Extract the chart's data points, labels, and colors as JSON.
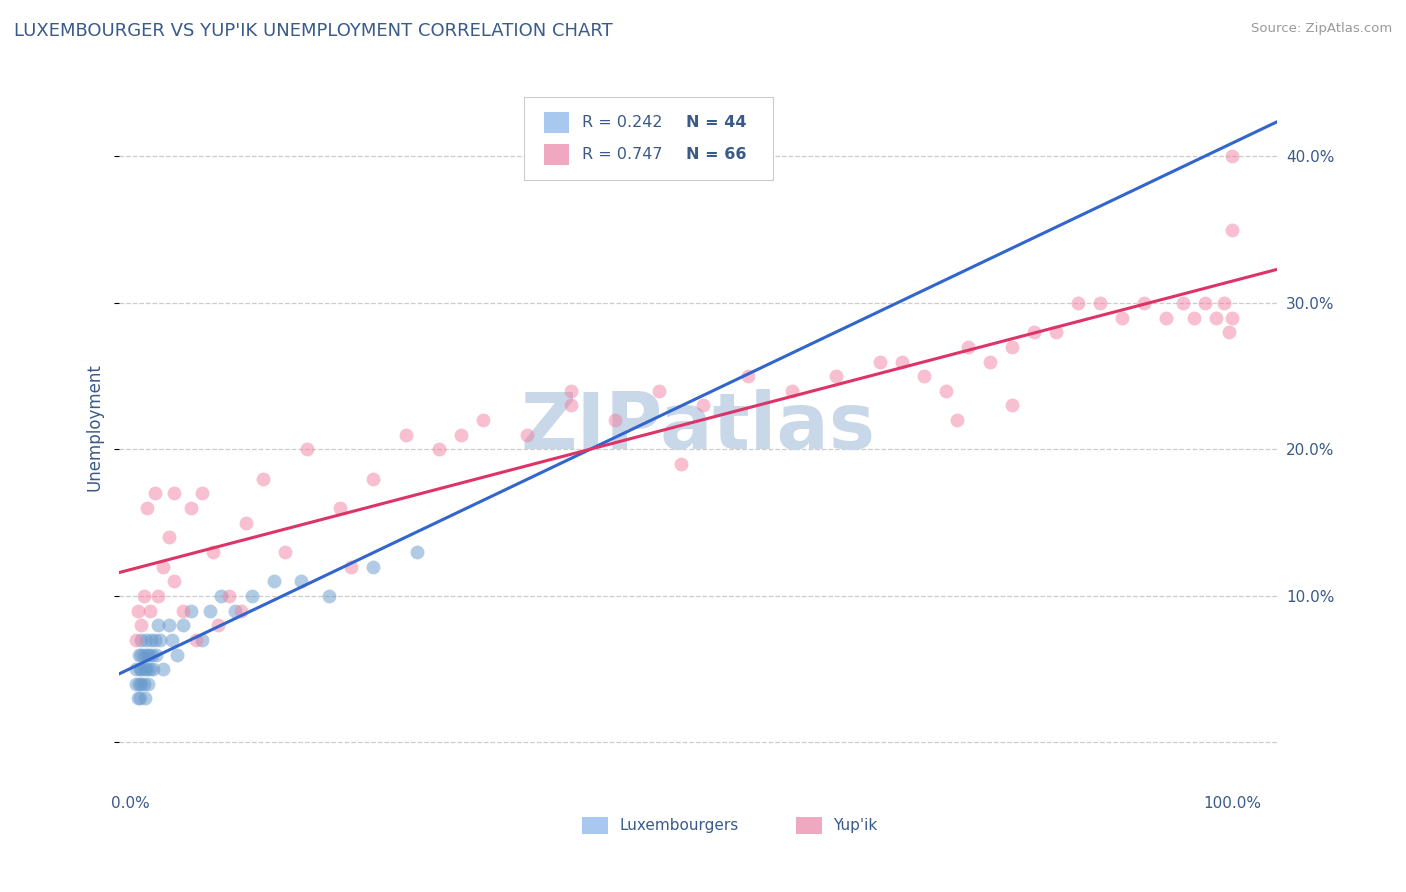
{
  "title": "LUXEMBOURGER VS YUP'IK UNEMPLOYMENT CORRELATION CHART",
  "source": "Source: ZipAtlas.com",
  "ylabel": "Unemployment",
  "yticks": [
    0.0,
    0.1,
    0.2,
    0.3,
    0.4
  ],
  "ytick_labels": [
    "",
    "10.0%",
    "20.0%",
    "30.0%",
    "40.0%"
  ],
  "xlim": [
    -0.01,
    1.04
  ],
  "ylim": [
    -0.03,
    0.46
  ],
  "title_color": "#3a5a8a",
  "title_fontsize": 13,
  "watermark": "ZIPatlas",
  "watermark_color": "#c8d8e8",
  "watermark_fontsize": 56,
  "legend_R1": "R = 0.242",
  "legend_N1": "N = 44",
  "legend_R2": "R = 0.747",
  "legend_N2": "N = 66",
  "legend_color1": "#a8c8f0",
  "legend_color2": "#f0a8c0",
  "scatter_color_blue": "#6699cc",
  "scatter_color_pink": "#f080a0",
  "line_color_blue": "#3366cc",
  "line_color_pink": "#dd3366",
  "dot_size": 100,
  "dot_alpha": 0.5,
  "blue_x": [
    0.005,
    0.005,
    0.007,
    0.008,
    0.008,
    0.009,
    0.009,
    0.01,
    0.01,
    0.01,
    0.01,
    0.012,
    0.012,
    0.013,
    0.013,
    0.014,
    0.015,
    0.015,
    0.016,
    0.017,
    0.018,
    0.019,
    0.02,
    0.021,
    0.022,
    0.023,
    0.025,
    0.027,
    0.03,
    0.035,
    0.038,
    0.042,
    0.048,
    0.055,
    0.065,
    0.072,
    0.082,
    0.095,
    0.11,
    0.13,
    0.155,
    0.18,
    0.22,
    0.26
  ],
  "blue_y": [
    0.04,
    0.05,
    0.03,
    0.06,
    0.04,
    0.05,
    0.03,
    0.06,
    0.04,
    0.05,
    0.07,
    0.04,
    0.06,
    0.03,
    0.05,
    0.07,
    0.05,
    0.06,
    0.04,
    0.06,
    0.05,
    0.07,
    0.06,
    0.05,
    0.07,
    0.06,
    0.08,
    0.07,
    0.05,
    0.08,
    0.07,
    0.06,
    0.08,
    0.09,
    0.07,
    0.09,
    0.1,
    0.09,
    0.1,
    0.11,
    0.11,
    0.1,
    0.12,
    0.13
  ],
  "pink_x": [
    0.005,
    0.007,
    0.01,
    0.012,
    0.015,
    0.018,
    0.022,
    0.025,
    0.03,
    0.035,
    0.04,
    0.048,
    0.055,
    0.065,
    0.075,
    0.09,
    0.105,
    0.12,
    0.14,
    0.16,
    0.19,
    0.22,
    0.25,
    0.28,
    0.32,
    0.36,
    0.4,
    0.44,
    0.48,
    0.52,
    0.56,
    0.6,
    0.64,
    0.68,
    0.7,
    0.72,
    0.74,
    0.76,
    0.78,
    0.8,
    0.82,
    0.84,
    0.86,
    0.88,
    0.9,
    0.92,
    0.94,
    0.955,
    0.965,
    0.975,
    0.985,
    0.992,
    0.997,
    1.0,
    1.0,
    1.0,
    0.5,
    0.4,
    0.2,
    0.1,
    0.08,
    0.06,
    0.04,
    0.8,
    0.75,
    0.3
  ],
  "pink_y": [
    0.07,
    0.09,
    0.08,
    0.1,
    0.16,
    0.09,
    0.17,
    0.1,
    0.12,
    0.14,
    0.11,
    0.09,
    0.16,
    0.17,
    0.13,
    0.1,
    0.15,
    0.18,
    0.13,
    0.2,
    0.16,
    0.18,
    0.21,
    0.2,
    0.22,
    0.21,
    0.23,
    0.22,
    0.24,
    0.23,
    0.25,
    0.24,
    0.25,
    0.26,
    0.26,
    0.25,
    0.24,
    0.27,
    0.26,
    0.27,
    0.28,
    0.28,
    0.3,
    0.3,
    0.29,
    0.3,
    0.29,
    0.3,
    0.29,
    0.3,
    0.29,
    0.3,
    0.28,
    0.35,
    0.4,
    0.29,
    0.19,
    0.24,
    0.12,
    0.09,
    0.08,
    0.07,
    0.17,
    0.23,
    0.22,
    0.21
  ]
}
